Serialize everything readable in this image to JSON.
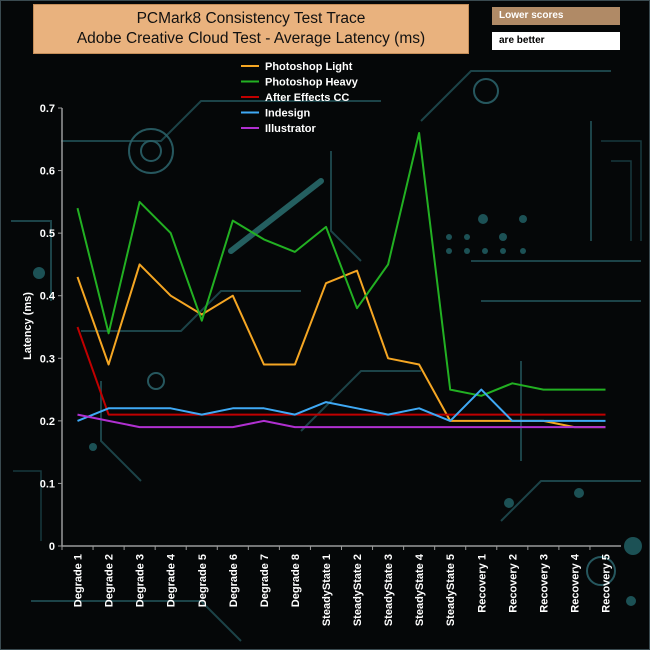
{
  "header": {
    "title_line1": "PCMark8 Consistency Test Trace",
    "title_line2": "Adobe Creative Cloud Test -  Average Latency (ms)",
    "note_line1": "Lower scores",
    "note_line2": "are better"
  },
  "chart_data": {
    "type": "line",
    "title": "PCMark8 Consistency Test Trace Adobe Creative Cloud Test -  Average Latency (ms)",
    "xlabel": "",
    "ylabel": "Latency (ms)",
    "ylim": [
      0,
      0.7
    ],
    "yticks": [
      "0",
      "0.1",
      "0.2",
      "0.3",
      "0.4",
      "0.5",
      "0.6",
      "0.7"
    ],
    "grid": false,
    "legend_position": "top",
    "categories": [
      "Degrade 1",
      "Degrade 2",
      "Degrade 3",
      "Degrade 4",
      "Degrade 5",
      "Degrade 6",
      "Degrade 7",
      "Degrade 8",
      "SteadyState 1",
      "SteadyState 2",
      "SteadyState 3",
      "SteadyState 4",
      "SteadyState 5",
      "Recovery 1",
      "Recovery 2",
      "Recovery 3",
      "Recovery 4",
      "Recovery 5"
    ],
    "series": [
      {
        "name": "Photoshop Light",
        "color": "#f5a623",
        "values": [
          0.43,
          0.29,
          0.45,
          0.4,
          0.37,
          0.4,
          0.29,
          0.29,
          0.42,
          0.44,
          0.3,
          0.29,
          0.2,
          0.2,
          0.2,
          0.2,
          0.19,
          0.19
        ]
      },
      {
        "name": " Photoshop Heavy",
        "color": "#22b022",
        "values": [
          0.54,
          0.34,
          0.55,
          0.5,
          0.36,
          0.52,
          0.49,
          0.47,
          0.51,
          0.38,
          0.45,
          0.66,
          0.25,
          0.24,
          0.26,
          0.25,
          0.25,
          0.25
        ]
      },
      {
        "name": "After Effects CC",
        "color": "#c00000",
        "values": [
          0.35,
          0.21,
          0.21,
          0.21,
          0.21,
          0.21,
          0.21,
          0.21,
          0.21,
          0.21,
          0.21,
          0.21,
          0.21,
          0.21,
          0.21,
          0.21,
          0.21,
          0.21
        ]
      },
      {
        "name": "Indesign",
        "color": "#3fa9f5",
        "values": [
          0.2,
          0.22,
          0.22,
          0.22,
          0.21,
          0.22,
          0.22,
          0.21,
          0.23,
          0.22,
          0.21,
          0.22,
          0.2,
          0.25,
          0.2,
          0.2,
          0.2,
          0.2
        ]
      },
      {
        "name": "Illustrator",
        "color": "#b030d0",
        "values": [
          0.21,
          0.2,
          0.19,
          0.19,
          0.19,
          0.19,
          0.2,
          0.19,
          0.19,
          0.19,
          0.19,
          0.19,
          0.19,
          0.19,
          0.19,
          0.19,
          0.19,
          0.19
        ]
      }
    ]
  }
}
